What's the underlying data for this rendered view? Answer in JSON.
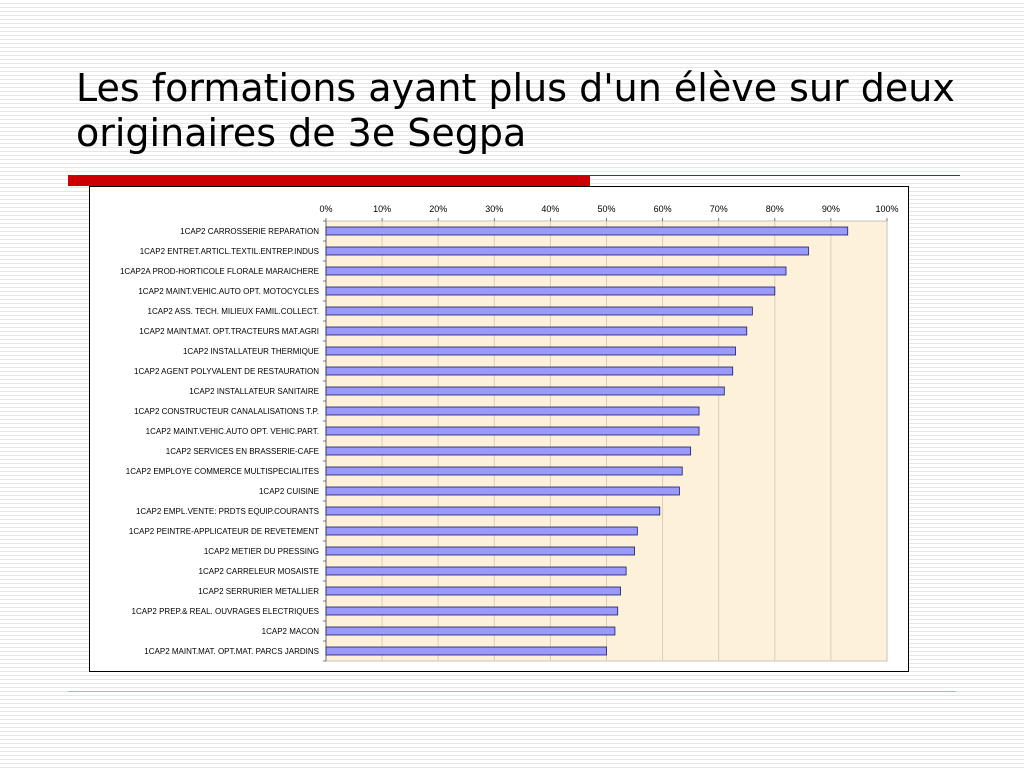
{
  "slide": {
    "title": "Les formations ayant plus d'un élève sur deux originaires de 3e Segpa"
  },
  "chart_data": {
    "type": "bar",
    "orientation": "horizontal",
    "title": "",
    "xlabel": "",
    "ylabel": "",
    "xlim": [
      0,
      100
    ],
    "x_ticks": [
      "0%",
      "10%",
      "20%",
      "30%",
      "40%",
      "50%",
      "60%",
      "70%",
      "80%",
      "90%",
      "100%"
    ],
    "x_axis_position": "top",
    "grid": true,
    "legend": "none",
    "colors": {
      "bar_fill": "#9999ff",
      "bar_stroke": "#1a1a66",
      "plot_background": "#fdf2d9",
      "gridline": "#d9cdb5"
    },
    "categories": [
      "1CAP2 CARROSSERIE REPARATION",
      "1CAP2 ENTRET.ARTICL.TEXTIL.ENTREP.INDUS",
      "1CAP2A PROD-HORTICOLE FLORALE MARAICHERE",
      "1CAP2 MAINT.VEHIC.AUTO OPT. MOTOCYCLES",
      "1CAP2 ASS. TECH. MILIEUX FAMIL.COLLECT.",
      "1CAP2 MAINT.MAT. OPT.TRACTEURS MAT.AGRI",
      "1CAP2 INSTALLATEUR THERMIQUE",
      "1CAP2 AGENT POLYVALENT DE RESTAURATION",
      "1CAP2 INSTALLATEUR SANITAIRE",
      "1CAP2 CONSTRUCTEUR CANALALISATIONS T.P.",
      "1CAP2 MAINT.VEHIC.AUTO OPT. VEHIC.PART.",
      "1CAP2 SERVICES EN BRASSERIE-CAFE",
      "1CAP2 EMPLOYE COMMERCE MULTISPECIALITES",
      "1CAP2 CUISINE",
      "1CAP2 EMPL.VENTE: PRDTS EQUIP.COURANTS",
      "1CAP2 PEINTRE-APPLICATEUR DE REVETEMENT",
      "1CAP2 METIER DU PRESSING",
      "1CAP2 CARRELEUR MOSAISTE",
      "1CAP2 SERRURIER METALLIER",
      "1CAP2 PREP.& REAL. OUVRAGES ELECTRIQUES",
      "1CAP2 MACON",
      "1CAP2 MAINT.MAT. OPT.MAT. PARCS JARDINS"
    ],
    "values": [
      93,
      86,
      82,
      80,
      76,
      75,
      73,
      72.5,
      71,
      66.5,
      66.5,
      65,
      63.5,
      63,
      59.5,
      55.5,
      55,
      53.5,
      52.5,
      52,
      51.5,
      50
    ]
  }
}
